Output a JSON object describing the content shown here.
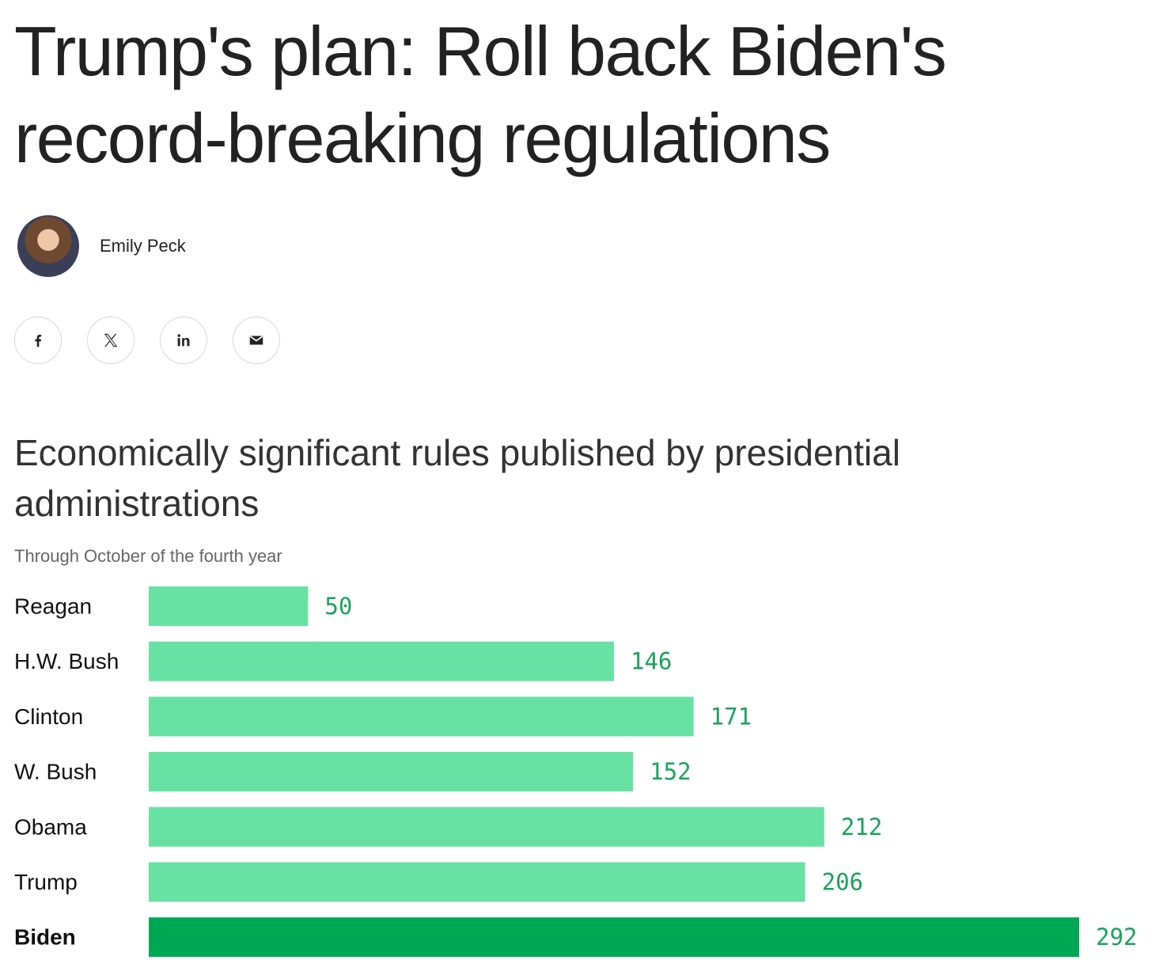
{
  "article": {
    "headline": "Trump's plan: Roll back Biden's record-breaking regulations",
    "author": "Emily Peck"
  },
  "share": [
    {
      "icon": "facebook-icon"
    },
    {
      "icon": "x-icon"
    },
    {
      "icon": "linkedin-icon"
    },
    {
      "icon": "email-icon"
    }
  ],
  "chart_data": {
    "type": "bar",
    "orientation": "horizontal",
    "title": "Economically significant rules published by presidential administrations",
    "subtitle": "Through October of the fourth year",
    "categories": [
      "Reagan",
      "H.W. Bush",
      "Clinton",
      "W. Bush",
      "Obama",
      "Trump",
      "Biden"
    ],
    "values": [
      50,
      146,
      171,
      152,
      212,
      206,
      292
    ],
    "highlight": "Biden",
    "colors": {
      "bar": "#68e2a3",
      "highlight": "#00a854",
      "value_label": "#19a35a"
    },
    "grid": false,
    "legend": "none"
  }
}
